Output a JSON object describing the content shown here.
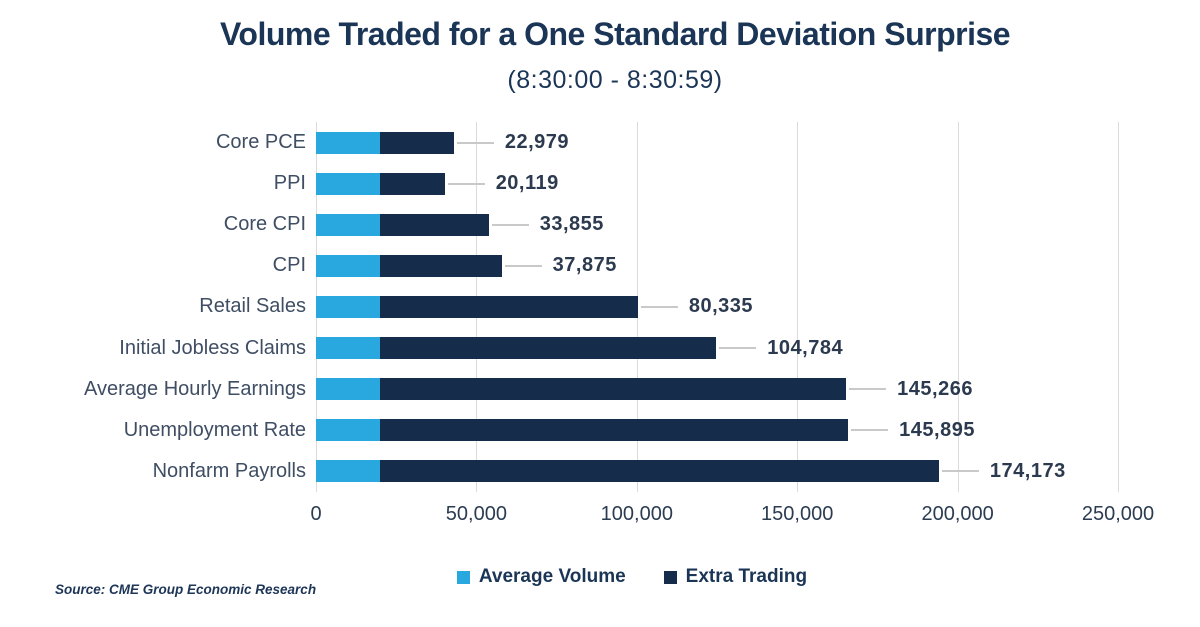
{
  "title": "Volume Traded for a One Standard Deviation Surprise",
  "subtitle": "(8:30:00 - 8:30:59)",
  "source": "Source: CME Group Economic Research",
  "colors": {
    "average_volume": "#29A8DF",
    "extra_trading": "#152C4B",
    "gridline": "#DBDBDB",
    "leader_line": "#C9C9C9",
    "text_navy": "#1B3556"
  },
  "legend": [
    {
      "label": "Average Volume",
      "color": "#29A8DF"
    },
    {
      "label": "Extra Trading",
      "color": "#152C4B"
    }
  ],
  "chart_data": {
    "type": "bar",
    "orientation": "horizontal",
    "stacked": true,
    "title": "Volume Traded for a One Standard Deviation Surprise",
    "subtitle": "(8:30:00 - 8:30:59)",
    "categories": [
      "Core PCE",
      "PPI",
      "Core CPI",
      "CPI",
      "Retail Sales",
      "Initial Jobless Claims",
      "Average Hourly Earnings",
      "Unemployment Rate",
      "Nonfarm Payrolls"
    ],
    "series": [
      {
        "name": "Average Volume",
        "color": "#29A8DF",
        "values": [
          20000,
          20000,
          20000,
          20000,
          20000,
          20000,
          20000,
          20000,
          20000
        ]
      },
      {
        "name": "Extra Trading",
        "color": "#152C4B",
        "values": [
          22979,
          20119,
          33855,
          37875,
          80335,
          104784,
          145266,
          145895,
          174173
        ]
      }
    ],
    "bar_labels": [
      "22,979",
      "20,119",
      "33,855",
      "37,875",
      "80,335",
      "104,784",
      "145,266",
      "145,895",
      "174,173"
    ],
    "x_ticks": [
      "0",
      "50,000",
      "100,000",
      "150,000",
      "200,000",
      "250,000"
    ],
    "xlim": [
      0,
      250000
    ],
    "grid": "vertical",
    "legend_position": "bottom"
  }
}
